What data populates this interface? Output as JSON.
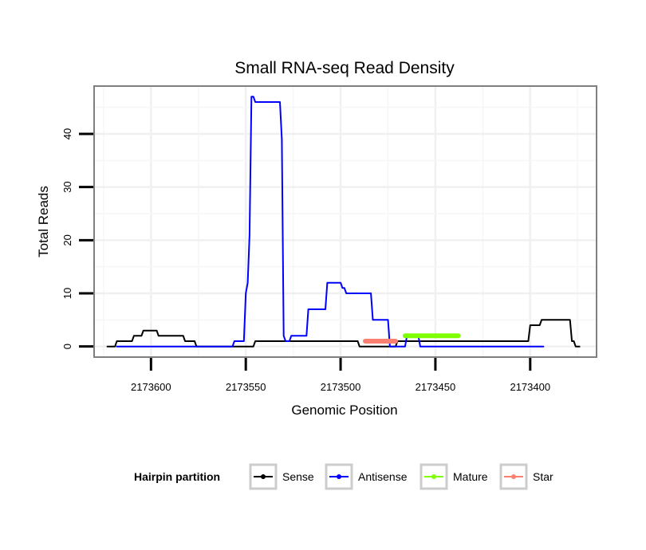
{
  "chart_data": {
    "type": "line",
    "title": "Small RNA-seq Read Density",
    "xlabel": "Genomic Position",
    "ylabel": "Total Reads",
    "xlim": [
      2173630,
      2173365
    ],
    "ylim": [
      -2,
      49
    ],
    "x_reversed": true,
    "x_ticks": [
      2173600,
      2173550,
      2173500,
      2173450,
      2173400
    ],
    "x_tick_labels": [
      "2173600",
      "2173550",
      "2173500",
      "2173450",
      "2173400"
    ],
    "y_ticks": [
      0,
      10,
      20,
      30,
      40
    ],
    "y_tick_labels": [
      "0",
      "10",
      "20",
      "30",
      "40"
    ],
    "grid": true,
    "legend": {
      "title": "Hairpin partition",
      "position": "bottom",
      "entries": [
        "Sense",
        "Antisense",
        "Mature",
        "Star"
      ]
    },
    "series": [
      {
        "name": "Sense",
        "color": "#000000",
        "x": [
          2173623,
          2173619,
          2173618,
          2173610,
          2173609,
          2173605,
          2173604,
          2173597,
          2173596,
          2173583,
          2173582,
          2173577,
          2173576,
          2173546,
          2173545,
          2173491,
          2173490,
          2173471,
          2173470,
          2173401,
          2173400,
          2173395,
          2173394,
          2173379,
          2173378,
          2173377,
          2173376,
          2173374
        ],
        "y": [
          0,
          0,
          1,
          1,
          2,
          2,
          3,
          3,
          2,
          2,
          1,
          1,
          0,
          0,
          1,
          1,
          0,
          0,
          1,
          1,
          4,
          4,
          5,
          5,
          1,
          1,
          0,
          0
        ]
      },
      {
        "name": "Antisense",
        "color": "#0000ff",
        "x": [
          2173618,
          2173557,
          2173556,
          2173551,
          2173550,
          2173549,
          2173548,
          2173547,
          2173546,
          2173545,
          2173543,
          2173539,
          2173532,
          2173531,
          2173530,
          2173529,
          2173527,
          2173526,
          2173518,
          2173517,
          2173508,
          2173507,
          2173500,
          2173499,
          2173498,
          2173497,
          2173496,
          2173495,
          2173494,
          2173493,
          2173484,
          2173483,
          2173475,
          2173474,
          2173466,
          2173465,
          2173459,
          2173458,
          2173453,
          2173438,
          2173437,
          2173393
        ],
        "y": [
          0,
          0,
          1,
          1,
          10,
          12,
          21,
          47,
          47,
          46,
          46,
          46,
          46,
          39,
          2,
          1,
          1,
          2,
          2,
          7,
          7,
          12,
          12,
          11,
          11,
          10,
          10,
          10,
          10,
          10,
          10,
          5,
          5,
          0,
          0,
          2,
          2,
          0,
          0,
          0,
          0,
          0
        ]
      },
      {
        "name": "Mature",
        "color": "#7fff00",
        "x": [
          2173466,
          2173438
        ],
        "y": [
          2,
          2
        ]
      },
      {
        "name": "Star",
        "color": "#fa8072",
        "x": [
          2173487,
          2173471
        ],
        "y": [
          1,
          1
        ]
      }
    ]
  }
}
